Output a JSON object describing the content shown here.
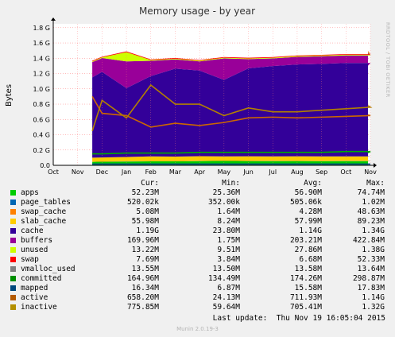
{
  "chart_data": {
    "type": "area",
    "title": "Memory usage - by year",
    "ylabel": "Bytes",
    "watermark": "RRDTOOL / TOBI OETIKER",
    "x_ticks": [
      "Oct",
      "Nov",
      "Dec",
      "Jan",
      "Feb",
      "Mar",
      "Apr",
      "May",
      "Jun",
      "Jul",
      "Aug",
      "Sep",
      "Oct",
      "Nov"
    ],
    "y_ticks": [
      "0.0",
      "0.2 G",
      "0.4 G",
      "0.6 G",
      "0.8 G",
      "1.0 G",
      "1.2 G",
      "1.4 G",
      "1.6 G",
      "1.8 G"
    ],
    "ylim": [
      0,
      1.8
    ],
    "grid": true,
    "x_dates": [
      "2014-11-19",
      "2014-12-01",
      "2015-01-01",
      "2015-02-01",
      "2015-03-01",
      "2015-04-01",
      "2015-05-01",
      "2015-06-01",
      "2015-07-01",
      "2015-08-01",
      "2015-09-01",
      "2015-10-01",
      "2015-11-01",
      "2015-11-19"
    ],
    "stack_series": [
      {
        "name": "apps",
        "color": "#00cc00",
        "values_G": [
          0.045,
          0.048,
          0.05,
          0.052,
          0.052,
          0.055,
          0.058,
          0.056,
          0.055,
          0.056,
          0.054,
          0.055,
          0.055,
          0.052
        ]
      },
      {
        "name": "page_tables",
        "color": "#0066b3",
        "values_G": [
          0.0005,
          0.0005,
          0.0005,
          0.0005,
          0.0005,
          0.0005,
          0.0005,
          0.0005,
          0.0005,
          0.0005,
          0.0005,
          0.0005,
          0.0005,
          0.0005
        ]
      },
      {
        "name": "swap_cache",
        "color": "#ff8000",
        "values_G": [
          0.004,
          0.004,
          0.004,
          0.004,
          0.004,
          0.004,
          0.004,
          0.004,
          0.004,
          0.004,
          0.004,
          0.004,
          0.004,
          0.005
        ]
      },
      {
        "name": "slab_cache",
        "color": "#ffcc00",
        "values_G": [
          0.05,
          0.05,
          0.055,
          0.06,
          0.058,
          0.06,
          0.055,
          0.058,
          0.058,
          0.058,
          0.058,
          0.058,
          0.058,
          0.056
        ]
      },
      {
        "name": "cache",
        "color": "#330099",
        "values_G": [
          1.05,
          1.12,
          0.9,
          1.05,
          1.15,
          1.12,
          1.0,
          1.15,
          1.18,
          1.2,
          1.21,
          1.22,
          1.22,
          1.19
        ]
      },
      {
        "name": "buffers",
        "color": "#990099",
        "values_G": [
          0.2,
          0.18,
          0.35,
          0.2,
          0.12,
          0.12,
          0.28,
          0.12,
          0.1,
          0.1,
          0.1,
          0.1,
          0.1,
          0.17
        ]
      },
      {
        "name": "unused",
        "color": "#ccff00",
        "values_G": [
          0.01,
          0.01,
          0.12,
          0.01,
          0.01,
          0.01,
          0.01,
          0.01,
          0.01,
          0.01,
          0.01,
          0.01,
          0.01,
          0.013
        ]
      },
      {
        "name": "swap",
        "color": "#ff0000",
        "values_G": [
          0.008,
          0.008,
          0.01,
          0.008,
          0.008,
          0.008,
          0.008,
          0.008,
          0.008,
          0.008,
          0.008,
          0.008,
          0.008,
          0.008
        ]
      }
    ],
    "line_series": [
      {
        "name": "committed",
        "color": "#00aa00",
        "values_G": [
          0.15,
          0.15,
          0.16,
          0.16,
          0.16,
          0.17,
          0.17,
          0.17,
          0.17,
          0.17,
          0.17,
          0.18,
          0.18,
          0.165
        ]
      },
      {
        "name": "mapped",
        "color": "#004c87",
        "values_G": [
          0.016,
          0.016,
          0.016,
          0.016,
          0.016,
          0.016,
          0.016,
          0.016,
          0.016,
          0.016,
          0.016,
          0.016,
          0.016,
          0.016
        ]
      },
      {
        "name": "active",
        "color": "#cc6600",
        "values_G": [
          0.9,
          0.68,
          0.65,
          0.5,
          0.55,
          0.52,
          0.56,
          0.62,
          0.63,
          0.62,
          0.63,
          0.64,
          0.65,
          0.66
        ]
      },
      {
        "name": "inactive",
        "color": "#b38000",
        "values_G": [
          0.45,
          0.85,
          0.62,
          1.05,
          0.8,
          0.8,
          0.65,
          0.75,
          0.7,
          0.7,
          0.72,
          0.74,
          0.76,
          0.78
        ]
      }
    ]
  },
  "legend": {
    "headers": {
      "cur": "Cur:",
      "min": "Min:",
      "avg": "Avg:",
      "max": "Max:"
    },
    "rows": [
      {
        "name": "apps",
        "color": "#00cc00",
        "cur": "52.23M",
        "min": "25.36M",
        "avg": "56.90M",
        "max": "74.74M"
      },
      {
        "name": "page_tables",
        "color": "#0066b3",
        "cur": "520.02k",
        "min": "352.00k",
        "avg": "505.06k",
        "max": "1.02M"
      },
      {
        "name": "swap_cache",
        "color": "#ff8000",
        "cur": "5.08M",
        "min": "1.64M",
        "avg": "4.28M",
        "max": "48.63M"
      },
      {
        "name": "slab_cache",
        "color": "#ffcc00",
        "cur": "55.98M",
        "min": "8.24M",
        "avg": "57.99M",
        "max": "89.23M"
      },
      {
        "name": "cache",
        "color": "#330099",
        "cur": "1.19G",
        "min": "23.80M",
        "avg": "1.14G",
        "max": "1.34G"
      },
      {
        "name": "buffers",
        "color": "#990099",
        "cur": "169.96M",
        "min": "1.75M",
        "avg": "203.21M",
        "max": "422.84M"
      },
      {
        "name": "unused",
        "color": "#ccff00",
        "cur": "13.22M",
        "min": "9.51M",
        "avg": "27.86M",
        "max": "1.38G"
      },
      {
        "name": "swap",
        "color": "#ff0000",
        "cur": "7.69M",
        "min": "3.84M",
        "avg": "6.68M",
        "max": "52.33M"
      },
      {
        "name": "vmalloc_used",
        "color": "#808080",
        "cur": "13.55M",
        "min": "13.50M",
        "avg": "13.58M",
        "max": "13.64M"
      },
      {
        "name": "committed",
        "color": "#008f00",
        "cur": "164.96M",
        "min": "134.49M",
        "avg": "174.26M",
        "max": "298.87M"
      },
      {
        "name": "mapped",
        "color": "#00487d",
        "cur": "16.34M",
        "min": "6.87M",
        "avg": "15.58M",
        "max": "17.83M"
      },
      {
        "name": "active",
        "color": "#b35a00",
        "cur": "658.20M",
        "min": "24.13M",
        "avg": "711.93M",
        "max": "1.14G"
      },
      {
        "name": "inactive",
        "color": "#b38f00",
        "cur": "775.85M",
        "min": "59.64M",
        "avg": "705.41M",
        "max": "1.32G"
      }
    ]
  },
  "last_update": "Last update:  Thu Nov 19 16:05:04 2015",
  "footer": "Munin 2.0.19-3"
}
